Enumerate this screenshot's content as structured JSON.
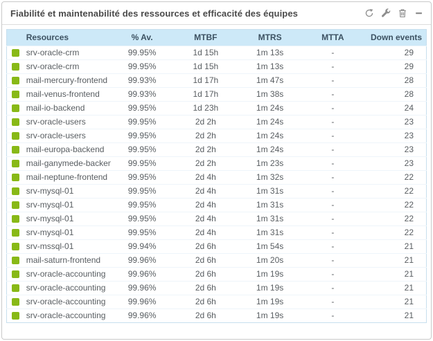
{
  "widget": {
    "title": "Fiabilité et maintenabilité des ressources et efficacité des équipes",
    "toolbar": {
      "refresh": "refresh",
      "configure": "configure",
      "delete": "delete",
      "collapse": "collapse"
    }
  },
  "colors": {
    "status_ok": "#88b917",
    "header_bg": "#cde9f8",
    "header_text": "#3c5161",
    "row_text": "#585d61",
    "icon_gray": "#8e8e8e",
    "table_border": "#c7dfee"
  },
  "table": {
    "columns": [
      "Resources",
      "% Av.",
      "MTBF",
      "MTRS",
      "MTTA",
      "Down events"
    ],
    "rows": [
      {
        "status": "ok",
        "resource": "srv-oracle-crm",
        "availability": "99.95%",
        "mtbf": "1d 15h",
        "mtrs": "1m 13s",
        "mtta": "-",
        "down_events": "29"
      },
      {
        "status": "ok",
        "resource": "srv-oracle-crm",
        "availability": "99.95%",
        "mtbf": "1d 15h",
        "mtrs": "1m 13s",
        "mtta": "-",
        "down_events": "29"
      },
      {
        "status": "ok",
        "resource": "mail-mercury-frontend",
        "availability": "99.93%",
        "mtbf": "1d 17h",
        "mtrs": "1m 47s",
        "mtta": "-",
        "down_events": "28"
      },
      {
        "status": "ok",
        "resource": "mail-venus-frontend",
        "availability": "99.93%",
        "mtbf": "1d 17h",
        "mtrs": "1m 38s",
        "mtta": "-",
        "down_events": "28"
      },
      {
        "status": "ok",
        "resource": "mail-io-backend",
        "availability": "99.95%",
        "mtbf": "1d 23h",
        "mtrs": "1m 24s",
        "mtta": "-",
        "down_events": "24"
      },
      {
        "status": "ok",
        "resource": "srv-oracle-users",
        "availability": "99.95%",
        "mtbf": "2d 2h",
        "mtrs": "1m 24s",
        "mtta": "-",
        "down_events": "23"
      },
      {
        "status": "ok",
        "resource": "srv-oracle-users",
        "availability": "99.95%",
        "mtbf": "2d 2h",
        "mtrs": "1m 24s",
        "mtta": "-",
        "down_events": "23"
      },
      {
        "status": "ok",
        "resource": "mail-europa-backend",
        "availability": "99.95%",
        "mtbf": "2d 2h",
        "mtrs": "1m 24s",
        "mtta": "-",
        "down_events": "23"
      },
      {
        "status": "ok",
        "resource": "mail-ganymede-backend",
        "availability": "99.95%",
        "mtbf": "2d 2h",
        "mtrs": "1m 23s",
        "mtta": "-",
        "down_events": "23"
      },
      {
        "status": "ok",
        "resource": "mail-neptune-frontend",
        "availability": "99.95%",
        "mtbf": "2d 4h",
        "mtrs": "1m 32s",
        "mtta": "-",
        "down_events": "22"
      },
      {
        "status": "ok",
        "resource": "srv-mysql-01",
        "availability": "99.95%",
        "mtbf": "2d 4h",
        "mtrs": "1m 31s",
        "mtta": "-",
        "down_events": "22"
      },
      {
        "status": "ok",
        "resource": "srv-mysql-01",
        "availability": "99.95%",
        "mtbf": "2d 4h",
        "mtrs": "1m 31s",
        "mtta": "-",
        "down_events": "22"
      },
      {
        "status": "ok",
        "resource": "srv-mysql-01",
        "availability": "99.95%",
        "mtbf": "2d 4h",
        "mtrs": "1m 31s",
        "mtta": "-",
        "down_events": "22"
      },
      {
        "status": "ok",
        "resource": "srv-mysql-01",
        "availability": "99.95%",
        "mtbf": "2d 4h",
        "mtrs": "1m 31s",
        "mtta": "-",
        "down_events": "22"
      },
      {
        "status": "ok",
        "resource": "srv-mssql-01",
        "availability": "99.94%",
        "mtbf": "2d 6h",
        "mtrs": "1m 54s",
        "mtta": "-",
        "down_events": "21"
      },
      {
        "status": "ok",
        "resource": "mail-saturn-frontend",
        "availability": "99.96%",
        "mtbf": "2d 6h",
        "mtrs": "1m 20s",
        "mtta": "-",
        "down_events": "21"
      },
      {
        "status": "ok",
        "resource": "srv-oracle-accounting",
        "availability": "99.96%",
        "mtbf": "2d 6h",
        "mtrs": "1m 19s",
        "mtta": "-",
        "down_events": "21"
      },
      {
        "status": "ok",
        "resource": "srv-oracle-accounting",
        "availability": "99.96%",
        "mtbf": "2d 6h",
        "mtrs": "1m 19s",
        "mtta": "-",
        "down_events": "21"
      },
      {
        "status": "ok",
        "resource": "srv-oracle-accounting",
        "availability": "99.96%",
        "mtbf": "2d 6h",
        "mtrs": "1m 19s",
        "mtta": "-",
        "down_events": "21"
      },
      {
        "status": "ok",
        "resource": "srv-oracle-accounting",
        "availability": "99.96%",
        "mtbf": "2d 6h",
        "mtrs": "1m 19s",
        "mtta": "-",
        "down_events": "21"
      }
    ]
  }
}
